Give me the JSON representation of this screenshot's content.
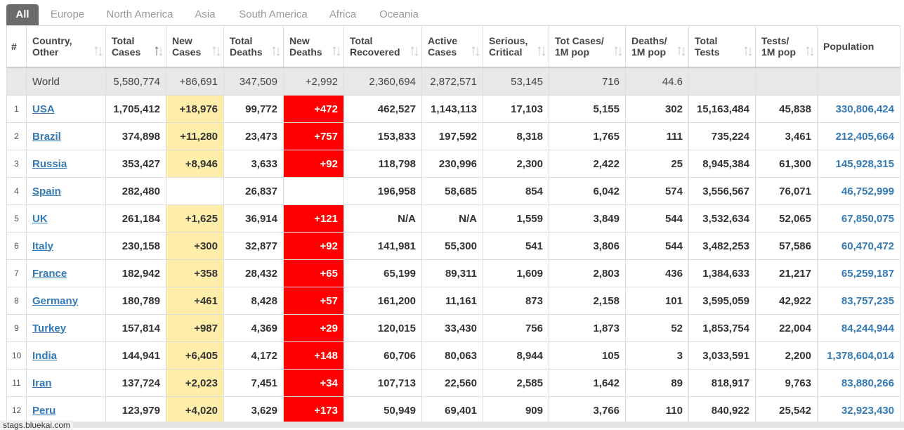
{
  "tabs": [
    "All",
    "Europe",
    "North America",
    "Asia",
    "South America",
    "Africa",
    "Oceania"
  ],
  "table": {
    "headers": [
      [
        "#"
      ],
      [
        "Country,",
        "Other"
      ],
      [
        "Total",
        "Cases"
      ],
      [
        "New",
        "Cases"
      ],
      [
        "Total",
        "Deaths"
      ],
      [
        "New",
        "Deaths"
      ],
      [
        "Total",
        "Recovered"
      ],
      [
        "Active",
        "Cases"
      ],
      [
        "Serious,",
        "Critical"
      ],
      [
        "Tot Cases/",
        "1M pop"
      ],
      [
        "Deaths/",
        "1M pop"
      ],
      [
        "Total",
        "Tests"
      ],
      [
        "Tests/",
        "1M pop"
      ],
      [
        "Population"
      ]
    ],
    "rows": [
      [
        null,
        "World",
        "5,580,774",
        "+86,691",
        "347,509",
        "+2,992",
        "2,360,694",
        "2,872,571",
        "53,145",
        "716",
        "44.6",
        null,
        null,
        null
      ],
      [
        "1",
        "USA",
        "1,705,412",
        "+18,976",
        "99,772",
        "+472",
        "462,527",
        "1,143,113",
        "17,103",
        "5,155",
        "302",
        "15,163,484",
        "45,838",
        "330,806,424"
      ],
      [
        "2",
        "Brazil",
        "374,898",
        "+11,280",
        "23,473",
        "+757",
        "153,833",
        "197,592",
        "8,318",
        "1,765",
        "111",
        "735,224",
        "3,461",
        "212,405,664"
      ],
      [
        "3",
        "Russia",
        "353,427",
        "+8,946",
        "3,633",
        "+92",
        "118,798",
        "230,996",
        "2,300",
        "2,422",
        "25",
        "8,945,384",
        "61,300",
        "145,928,315"
      ],
      [
        "4",
        "Spain",
        "282,480",
        null,
        "26,837",
        null,
        "196,958",
        "58,685",
        "854",
        "6,042",
        "574",
        "3,556,567",
        "76,071",
        "46,752,999"
      ],
      [
        "5",
        "UK",
        "261,184",
        "+1,625",
        "36,914",
        "+121",
        "N/A",
        "N/A",
        "1,559",
        "3,849",
        "544",
        "3,532,634",
        "52,065",
        "67,850,075"
      ],
      [
        "6",
        "Italy",
        "230,158",
        "+300",
        "32,877",
        "+92",
        "141,981",
        "55,300",
        "541",
        "3,806",
        "544",
        "3,482,253",
        "57,586",
        "60,470,472"
      ],
      [
        "7",
        "France",
        "182,942",
        "+358",
        "28,432",
        "+65",
        "65,199",
        "89,311",
        "1,609",
        "2,803",
        "436",
        "1,384,633",
        "21,217",
        "65,259,187"
      ],
      [
        "8",
        "Germany",
        "180,789",
        "+461",
        "8,428",
        "+57",
        "161,200",
        "11,161",
        "873",
        "2,158",
        "101",
        "3,595,059",
        "42,922",
        "83,757,235"
      ],
      [
        "9",
        "Turkey",
        "157,814",
        "+987",
        "4,369",
        "+29",
        "120,015",
        "33,430",
        "756",
        "1,873",
        "52",
        "1,853,754",
        "22,004",
        "84,244,944"
      ],
      [
        "10",
        "India",
        "144,941",
        "+6,405",
        "4,172",
        "+148",
        "60,706",
        "80,063",
        "8,944",
        "105",
        "3",
        "3,033,591",
        "2,200",
        "1,378,604,014"
      ],
      [
        "11",
        "Iran",
        "137,724",
        "+2,023",
        "7,451",
        "+34",
        "107,713",
        "22,560",
        "2,585",
        "1,642",
        "89",
        "818,917",
        "9,763",
        "83,880,266"
      ],
      [
        "12",
        "Peru",
        "123,979",
        "+4,020",
        "3,629",
        "+173",
        "50,949",
        "69,401",
        "909",
        "3,766",
        "110",
        "840,922",
        "25,542",
        "32,923,430"
      ]
    ]
  },
  "status_bar": "stags.bluekai.com"
}
